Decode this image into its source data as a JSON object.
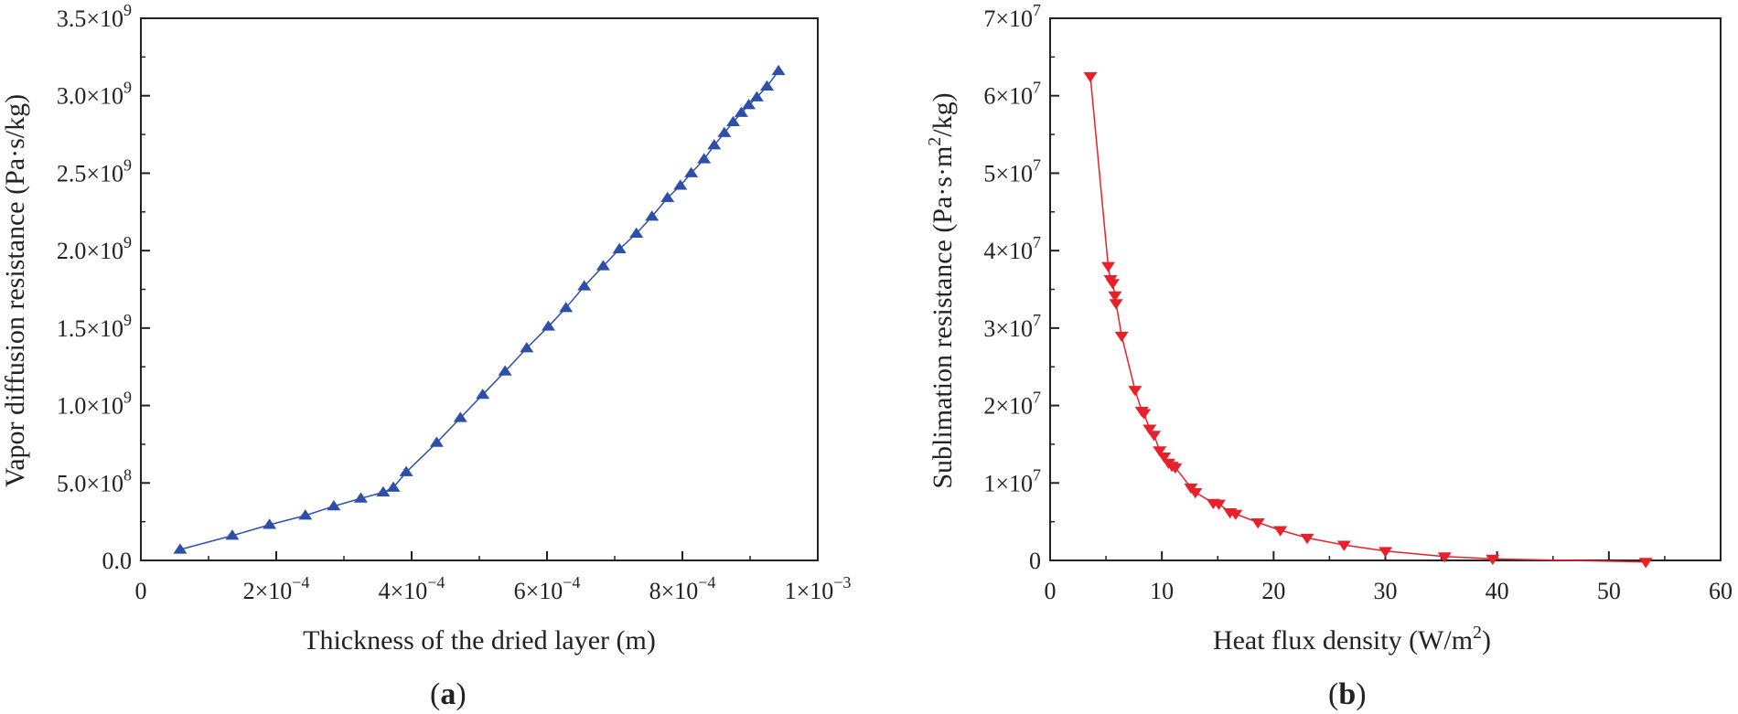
{
  "chart_data": [
    {
      "type": "line",
      "panel_label": "a",
      "xlabel": "Thickness of the dried layer (m)",
      "ylabel": "Vapor diffusion resistance (Pa·s/kg)",
      "xlim": [
        0,
        0.001
      ],
      "ylim": [
        0,
        3500000000
      ],
      "x_ticks": [
        {
          "value": 0,
          "label": "0"
        },
        {
          "value": 0.0002,
          "label": "2×10",
          "exp": "−4"
        },
        {
          "value": 0.0004,
          "label": "4×10",
          "exp": "−4"
        },
        {
          "value": 0.0006,
          "label": "6×10",
          "exp": "−4"
        },
        {
          "value": 0.0008,
          "label": "8×10",
          "exp": "−4"
        },
        {
          "value": 0.001,
          "label": "1×10",
          "exp": "−3"
        }
      ],
      "y_ticks": [
        {
          "value": 0,
          "label": "0.0"
        },
        {
          "value": 500000000,
          "label": "5.0×10",
          "exp": "8"
        },
        {
          "value": 1000000000,
          "label": "1.0×10",
          "exp": "9"
        },
        {
          "value": 1500000000,
          "label": "1.5×10",
          "exp": "9"
        },
        {
          "value": 2000000000,
          "label": "2.0×10",
          "exp": "9"
        },
        {
          "value": 2500000000,
          "label": "2.5×10",
          "exp": "9"
        },
        {
          "value": 3000000000,
          "label": "3.0×10",
          "exp": "9"
        },
        {
          "value": 3500000000,
          "label": "3.5×10",
          "exp": "9"
        }
      ],
      "series": [
        {
          "name": "vapor diffusion resistance",
          "color": "#2e4fa8",
          "marker": "triangle-up",
          "x": [
            5.8e-05,
            0.000135,
            0.00019,
            0.000243,
            0.000285,
            0.000325,
            0.000358,
            0.000373,
            0.000392,
            0.000437,
            0.000472,
            0.000505,
            0.000538,
            0.00057,
            0.000602,
            0.000628,
            0.000655,
            0.000683,
            0.000707,
            0.000732,
            0.000755,
            0.000778,
            0.000797,
            0.000813,
            0.000832,
            0.000847,
            0.000862,
            0.000875,
            0.000887,
            0.000898,
            0.00091,
            0.000925,
            0.000942
          ],
          "y": [
            70000000,
            160000000,
            230000000,
            290000000,
            350000000,
            400000000,
            440000000,
            470000000,
            570000000,
            760000000,
            920000000,
            1070000000,
            1220000000,
            1370000000,
            1510000000,
            1630000000,
            1770000000,
            1900000000,
            2010000000,
            2110000000,
            2220000000,
            2340000000,
            2420000000,
            2500000000,
            2590000000,
            2680000000,
            2760000000,
            2830000000,
            2890000000,
            2940000000,
            2990000000,
            3060000000,
            3160000000
          ]
        }
      ]
    },
    {
      "type": "line",
      "panel_label": "b",
      "xlabel": "Heat flux density (W/m",
      "xlabel_sup": "2",
      "xlabel_end": ")",
      "ylabel": "Sublimation resistance (Pa·s·m",
      "ylabel_sup": "2",
      "ylabel_end": "/kg)",
      "xlim": [
        0,
        60
      ],
      "ylim": [
        0,
        70000000
      ],
      "x_ticks": [
        {
          "value": 0,
          "label": "0"
        },
        {
          "value": 10,
          "label": "10"
        },
        {
          "value": 20,
          "label": "20"
        },
        {
          "value": 30,
          "label": "30"
        },
        {
          "value": 40,
          "label": "40"
        },
        {
          "value": 50,
          "label": "50"
        },
        {
          "value": 60,
          "label": "60"
        }
      ],
      "y_ticks": [
        {
          "value": 0,
          "label": "0"
        },
        {
          "value": 10000000,
          "label": "1×10",
          "exp": "7"
        },
        {
          "value": 20000000,
          "label": "2×10",
          "exp": "7"
        },
        {
          "value": 30000000,
          "label": "3×10",
          "exp": "7"
        },
        {
          "value": 40000000,
          "label": "4×10",
          "exp": "7"
        },
        {
          "value": 50000000,
          "label": "5×10",
          "exp": "7"
        },
        {
          "value": 60000000,
          "label": "6×10",
          "exp": "7"
        },
        {
          "value": 70000000,
          "label": "7×10",
          "exp": "7"
        }
      ],
      "series": [
        {
          "name": "sublimation resistance",
          "color": "#e8202a",
          "marker": "triangle-down",
          "x": [
            3.6,
            5.2,
            5.4,
            5.6,
            5.8,
            5.9,
            6.4,
            7.6,
            8.2,
            8.4,
            8.9,
            9.3,
            9.8,
            10.2,
            10.6,
            10.9,
            11.2,
            12.6,
            13.0,
            14.6,
            15.1,
            16.1,
            16.6,
            18.6,
            20.6,
            23.0,
            26.3,
            30.0,
            35.3,
            39.6,
            53.3
          ],
          "y": [
            62500000,
            38000000,
            36300000,
            35800000,
            34200000,
            33200000,
            29000000,
            22000000,
            19300000,
            19000000,
            17000000,
            16200000,
            14200000,
            13400000,
            12600000,
            12200000,
            12000000,
            9400000,
            8800000,
            7400000,
            7300000,
            6200000,
            6000000,
            4900000,
            3900000,
            2900000,
            2000000,
            1200000,
            500000,
            200000,
            -200000
          ]
        }
      ]
    }
  ]
}
